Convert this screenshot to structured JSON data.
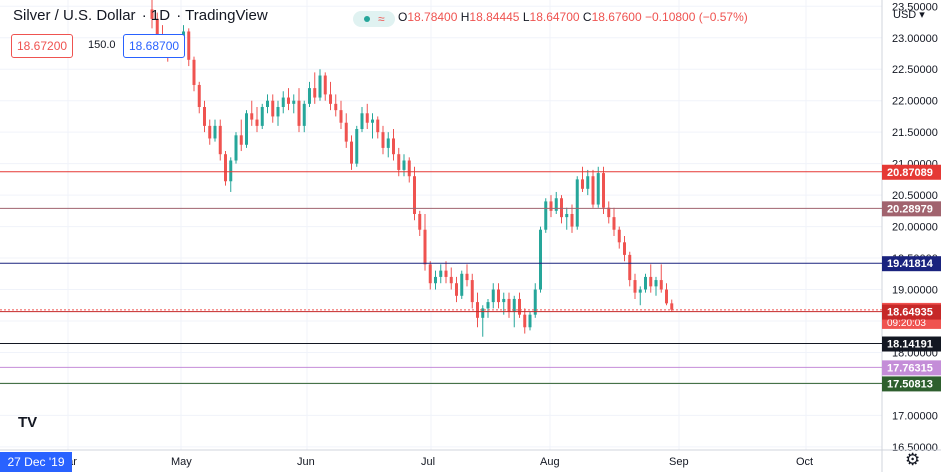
{
  "header": {
    "symbol": "Silver / U.S. Dollar",
    "interval": "1D",
    "source": "TradingView",
    "ohlc": {
      "o_label": "O",
      "o": "18.78400",
      "h_label": "H",
      "h": "18.84445",
      "l_label": "L",
      "l": "18.64700",
      "c_label": "C",
      "c": "18.67600",
      "change": "−0.10800 (−0.57%)"
    },
    "sell_price": "18.67200",
    "spread": "150.0",
    "buy_price": "18.68700"
  },
  "currency": "USD",
  "crosshair_date": "27 Dec '19",
  "logo": "TV",
  "gear_icon": "gear-icon",
  "chart_data": {
    "type": "candlestick",
    "y_axis": {
      "range": [
        16.45,
        23.6
      ],
      "ticks": [
        "16.50000",
        "17.00000",
        "17.50000",
        "18.00000",
        "18.50000",
        "19.00000",
        "19.50000",
        "20.00000",
        "20.50000",
        "21.00000",
        "21.50000",
        "22.00000",
        "22.50000",
        "23.00000",
        "23.50000"
      ]
    },
    "x_axis": {
      "ticks": [
        "Mar",
        "May",
        "Jun",
        "Jul",
        "Aug",
        "Sep",
        "Oct"
      ]
    },
    "levels": [
      {
        "value": 20.87089,
        "label": "20.87089",
        "color": "#e53935"
      },
      {
        "value": 20.28979,
        "label": "20.28979",
        "color": "#a1636e"
      },
      {
        "value": 19.41814,
        "label": "19.41814",
        "color": "#1a237e"
      },
      {
        "value": 18.676,
        "label": "18.67600",
        "sublabel": "09:20:03",
        "color": "#ef5350",
        "dotted": true
      },
      {
        "value": 18.64935,
        "label": "18.64935",
        "color": "#c62828"
      },
      {
        "value": 18.14191,
        "label": "18.14191",
        "color": "#131722"
      },
      {
        "value": 17.76315,
        "label": "17.76315",
        "color": "#c48dd8"
      },
      {
        "value": 17.50813,
        "label": "17.50813",
        "color": "#2e5f2e"
      }
    ],
    "candles": [
      [
        23.45,
        23.65,
        23.15,
        23.3
      ],
      [
        23.3,
        23.4,
        22.95,
        23.05
      ],
      [
        23.05,
        23.2,
        22.8,
        22.92
      ],
      [
        22.92,
        23.05,
        22.62,
        22.75
      ],
      [
        22.75,
        23.0,
        22.7,
        22.95
      ],
      [
        22.95,
        23.05,
        22.7,
        22.85
      ],
      [
        22.85,
        23.2,
        22.8,
        23.1
      ],
      [
        23.1,
        23.15,
        22.55,
        22.65
      ],
      [
        22.65,
        22.7,
        22.15,
        22.25
      ],
      [
        22.25,
        22.3,
        21.8,
        21.9
      ],
      [
        21.9,
        22.0,
        21.5,
        21.6
      ],
      [
        21.6,
        21.7,
        21.3,
        21.4
      ],
      [
        21.4,
        21.7,
        21.35,
        21.6
      ],
      [
        21.6,
        21.7,
        21.05,
        21.15
      ],
      [
        21.15,
        21.2,
        20.65,
        20.72
      ],
      [
        20.72,
        21.1,
        20.55,
        21.05
      ],
      [
        21.05,
        21.5,
        21.0,
        21.45
      ],
      [
        21.45,
        21.7,
        21.2,
        21.3
      ],
      [
        21.3,
        21.85,
        21.25,
        21.8
      ],
      [
        21.8,
        22.0,
        21.6,
        21.7
      ],
      [
        21.7,
        21.9,
        21.5,
        21.6
      ],
      [
        21.6,
        21.95,
        21.55,
        21.9
      ],
      [
        21.9,
        22.1,
        21.8,
        22.0
      ],
      [
        22.0,
        22.1,
        21.65,
        21.75
      ],
      [
        21.75,
        22.0,
        21.6,
        21.9
      ],
      [
        21.9,
        22.15,
        21.8,
        22.05
      ],
      [
        22.05,
        22.2,
        21.85,
        21.95
      ],
      [
        21.95,
        22.1,
        21.8,
        22.0
      ],
      [
        22.0,
        22.2,
        21.5,
        21.6
      ],
      [
        21.6,
        22.0,
        21.5,
        21.95
      ],
      [
        21.95,
        22.3,
        21.9,
        22.2
      ],
      [
        22.2,
        22.45,
        21.95,
        22.05
      ],
      [
        22.05,
        22.5,
        22.0,
        22.4
      ],
      [
        22.4,
        22.45,
        22.0,
        22.1
      ],
      [
        22.1,
        22.3,
        21.85,
        21.95
      ],
      [
        21.95,
        22.1,
        21.75,
        21.85
      ],
      [
        21.85,
        22.0,
        21.55,
        21.65
      ],
      [
        21.65,
        21.8,
        21.25,
        21.35
      ],
      [
        21.35,
        21.45,
        20.9,
        21.0
      ],
      [
        21.0,
        21.6,
        20.95,
        21.55
      ],
      [
        21.55,
        21.9,
        21.5,
        21.8
      ],
      [
        21.8,
        21.95,
        21.55,
        21.65
      ],
      [
        21.65,
        21.8,
        21.4,
        21.7
      ],
      [
        21.7,
        21.75,
        21.4,
        21.5
      ],
      [
        21.5,
        21.6,
        21.15,
        21.25
      ],
      [
        21.25,
        21.5,
        21.1,
        21.4
      ],
      [
        21.4,
        21.55,
        21.05,
        21.15
      ],
      [
        21.15,
        21.25,
        20.8,
        20.9
      ],
      [
        20.9,
        21.15,
        20.8,
        21.05
      ],
      [
        21.05,
        21.1,
        20.7,
        20.8
      ],
      [
        20.8,
        20.95,
        20.1,
        20.2
      ],
      [
        20.2,
        20.25,
        19.85,
        19.95
      ],
      [
        19.95,
        20.2,
        19.3,
        19.4
      ],
      [
        19.4,
        19.45,
        19.0,
        19.1
      ],
      [
        19.1,
        19.3,
        19.0,
        19.2
      ],
      [
        19.2,
        19.4,
        19.1,
        19.3
      ],
      [
        19.3,
        19.45,
        19.1,
        19.2
      ],
      [
        19.2,
        19.35,
        19.0,
        19.1
      ],
      [
        19.1,
        19.2,
        18.8,
        18.9
      ],
      [
        18.9,
        19.3,
        18.85,
        19.25
      ],
      [
        19.25,
        19.4,
        19.05,
        19.15
      ],
      [
        19.15,
        19.25,
        18.7,
        18.8
      ],
      [
        18.8,
        18.95,
        18.4,
        18.55
      ],
      [
        18.55,
        18.75,
        18.25,
        18.7
      ],
      [
        18.7,
        18.85,
        18.55,
        18.8
      ],
      [
        18.8,
        19.1,
        18.7,
        19.0
      ],
      [
        19.0,
        19.1,
        18.7,
        18.8
      ],
      [
        18.8,
        18.95,
        18.6,
        18.85
      ],
      [
        18.85,
        18.95,
        18.55,
        18.65
      ],
      [
        18.65,
        18.9,
        18.4,
        18.85
      ],
      [
        18.85,
        18.95,
        18.55,
        18.6
      ],
      [
        18.6,
        18.7,
        18.3,
        18.4
      ],
      [
        18.4,
        18.65,
        18.35,
        18.6
      ],
      [
        18.6,
        19.1,
        18.55,
        19.0
      ],
      [
        19.0,
        20.0,
        18.95,
        19.95
      ],
      [
        19.95,
        20.45,
        19.9,
        20.4
      ],
      [
        20.4,
        20.5,
        20.15,
        20.25
      ],
      [
        20.25,
        20.55,
        20.2,
        20.45
      ],
      [
        20.45,
        20.5,
        20.05,
        20.15
      ],
      [
        20.15,
        20.3,
        19.95,
        20.2
      ],
      [
        20.2,
        20.35,
        19.9,
        20.0
      ],
      [
        20.0,
        20.8,
        19.95,
        20.75
      ],
      [
        20.75,
        20.95,
        20.55,
        20.6
      ],
      [
        20.6,
        20.9,
        20.5,
        20.8
      ],
      [
        20.8,
        20.9,
        20.3,
        20.35
      ],
      [
        20.35,
        20.95,
        20.3,
        20.85
      ],
      [
        20.85,
        20.95,
        20.2,
        20.3
      ],
      [
        20.3,
        20.4,
        20.05,
        20.15
      ],
      [
        20.15,
        20.3,
        19.85,
        19.95
      ],
      [
        19.95,
        20.0,
        19.65,
        19.75
      ],
      [
        19.75,
        19.85,
        19.45,
        19.55
      ],
      [
        19.55,
        19.6,
        19.05,
        19.15
      ],
      [
        19.15,
        19.25,
        18.85,
        18.95
      ],
      [
        18.95,
        19.05,
        18.75,
        19.0
      ],
      [
        19.0,
        19.25,
        18.95,
        19.2
      ],
      [
        19.2,
        19.4,
        18.95,
        19.05
      ],
      [
        19.05,
        19.2,
        18.9,
        19.15
      ],
      [
        19.15,
        19.4,
        18.95,
        19.0
      ],
      [
        19.0,
        19.1,
        18.75,
        18.78
      ],
      [
        18.78,
        18.84,
        18.65,
        18.68
      ]
    ]
  }
}
